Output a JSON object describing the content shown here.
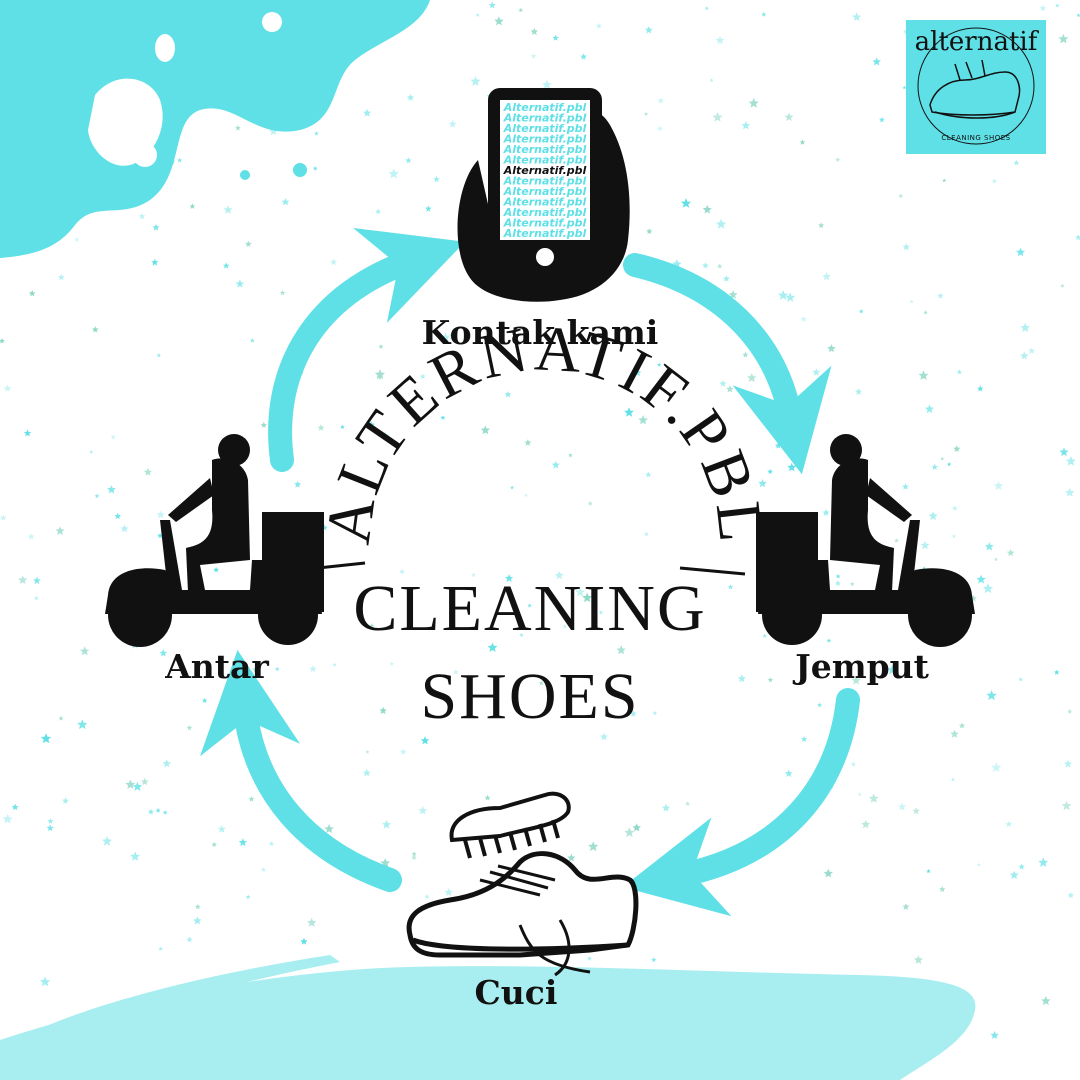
{
  "logo": {
    "top_text": "alternatif",
    "bottom_text": "CLEANING SHOES"
  },
  "center": {
    "arc_title": "ALTERNATIF.PBL",
    "line1": "CLEANING",
    "line2": "SHOES"
  },
  "phone": {
    "screen_lines": [
      "Alternatif.pbl",
      "Alternatif.pbl",
      "Alternatif.pbl",
      "Alternatif.pbl",
      "Alternatif.pbl",
      "Alternatif.pbl",
      "Alternatif.pbl",
      "Alternatif.pbl",
      "Alternatif.pbl",
      "Alternatif.pbl",
      "Alternatif.pbl",
      "Alternatif.pbl",
      "Alternatif.pbl"
    ]
  },
  "steps": {
    "kontak": "Kontak kami",
    "jemput": "Jemput",
    "cuci": "Cuci",
    "antar": "Antar"
  },
  "colors": {
    "accent": "#5ee0e6",
    "accent_light": "#a8eef0",
    "ink": "#111111",
    "background": "#ffffff"
  }
}
